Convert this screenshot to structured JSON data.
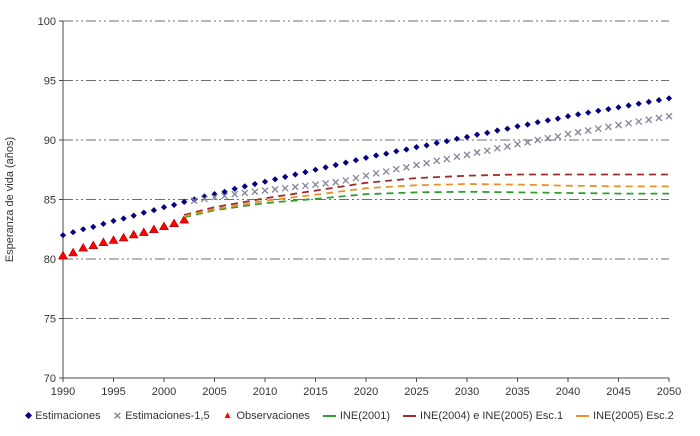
{
  "figure": {
    "background": "#ffffff",
    "grid_color": "#6e6e6e",
    "axis_color": "#4a4a4a",
    "text_color": "#333333"
  },
  "chart_data": {
    "type": "line",
    "title": "",
    "xlabel": "",
    "ylabel": "Esperanza de vida (años)",
    "xlim": [
      1990,
      2050
    ],
    "ylim": [
      70,
      100
    ],
    "x_ticks": [
      1990,
      1995,
      2000,
      2005,
      2010,
      2015,
      2020,
      2025,
      2030,
      2035,
      2040,
      2045,
      2050
    ],
    "y_ticks": [
      70,
      75,
      80,
      85,
      90,
      95,
      100
    ],
    "grid": "horizontal dash-dot",
    "legend_position": "bottom",
    "series": [
      {
        "name": "Estimaciones",
        "marker": "diamond",
        "line": "none",
        "color": "#000080",
        "start_year": 1990,
        "step": 1,
        "values": [
          82.0,
          82.25,
          82.5,
          82.7,
          82.95,
          83.2,
          83.4,
          83.65,
          83.9,
          84.1,
          84.35,
          84.55,
          84.8,
          85.0,
          85.25,
          85.45,
          85.65,
          85.9,
          86.1,
          86.3,
          86.5,
          86.7,
          86.9,
          87.1,
          87.3,
          87.5,
          87.7,
          87.9,
          88.1,
          88.3,
          88.5,
          88.7,
          88.85,
          89.05,
          89.2,
          89.4,
          89.55,
          89.75,
          89.9,
          90.1,
          90.25,
          90.45,
          90.6,
          90.8,
          90.95,
          91.15,
          91.3,
          91.5,
          91.65,
          91.8,
          92.0,
          92.15,
          92.3,
          92.45,
          92.6,
          92.75,
          92.9,
          93.05,
          93.2,
          93.35,
          93.5
        ]
      },
      {
        "name": "Estimaciones-1,5",
        "marker": "x",
        "line": "none",
        "color": "#83839c",
        "start_year": 2003,
        "step": 1,
        "values": [
          84.9,
          85.05,
          85.2,
          85.3,
          85.45,
          85.55,
          85.65,
          85.75,
          85.85,
          85.95,
          86.05,
          86.15,
          86.25,
          86.35,
          86.45,
          86.6,
          86.8,
          87.0,
          87.2,
          87.35,
          87.55,
          87.7,
          87.9,
          88.05,
          88.25,
          88.4,
          88.6,
          88.75,
          88.95,
          89.1,
          89.3,
          89.45,
          89.65,
          89.8,
          90.0,
          90.15,
          90.3,
          90.5,
          90.65,
          90.8,
          90.95,
          91.1,
          91.25,
          91.4,
          91.55,
          91.7,
          91.85,
          92.0
        ]
      },
      {
        "name": "Observaciones",
        "marker": "triangle",
        "line": "none",
        "color": "#ff0000",
        "start_year": 1990,
        "step": 1,
        "values": [
          80.3,
          80.55,
          80.95,
          81.15,
          81.4,
          81.6,
          81.8,
          82.05,
          82.25,
          82.5,
          82.75,
          83.0,
          83.3
        ]
      },
      {
        "name": "INE(2001)",
        "marker": "none",
        "line": "dashed",
        "color": "#2f9e2f",
        "start_year": 2002,
        "step": 1,
        "values": [
          83.5,
          83.7,
          83.9,
          84.1,
          84.22,
          84.34,
          84.46,
          84.58,
          84.7,
          84.77,
          84.84,
          84.91,
          84.98,
          85.05,
          85.13,
          85.21,
          85.29,
          85.37,
          85.45,
          85.48,
          85.51,
          85.54,
          85.57,
          85.6,
          85.61,
          85.62,
          85.63,
          85.64,
          85.65,
          85.64,
          85.63,
          85.62,
          85.61,
          85.6,
          85.59,
          85.58,
          85.57,
          85.56,
          85.55,
          85.54,
          85.53,
          85.52,
          85.51,
          85.5,
          85.5,
          85.5,
          85.5,
          85.5,
          85.5
        ]
      },
      {
        "name": "INE(2004) e INE(2005) Esc.1",
        "marker": "none",
        "line": "dashed",
        "color": "#a02b2b",
        "start_year": 2002,
        "step": 1,
        "values": [
          83.7,
          83.92,
          84.14,
          84.35,
          84.5,
          84.65,
          84.8,
          84.95,
          85.1,
          85.23,
          85.36,
          85.49,
          85.62,
          85.75,
          85.88,
          86.01,
          86.14,
          86.27,
          86.4,
          86.48,
          86.56,
          86.64,
          86.72,
          86.8,
          86.84,
          86.88,
          86.92,
          86.96,
          87.0,
          87.02,
          87.04,
          87.06,
          87.08,
          87.1,
          87.1,
          87.1,
          87.1,
          87.1,
          87.1,
          87.1,
          87.1,
          87.1,
          87.1,
          87.1,
          87.1,
          87.1,
          87.1,
          87.1,
          87.1
        ]
      },
      {
        "name": "INE(2005) Esc.2",
        "marker": "none",
        "line": "dashed",
        "color": "#e8922e",
        "start_year": 2002,
        "step": 1,
        "values": [
          83.6,
          83.8,
          84.0,
          84.2,
          84.34,
          84.48,
          84.62,
          84.76,
          84.9,
          85.0,
          85.1,
          85.2,
          85.3,
          85.4,
          85.51,
          85.62,
          85.73,
          85.84,
          85.95,
          86.0,
          86.05,
          86.1,
          86.15,
          86.2,
          86.22,
          86.24,
          86.26,
          86.28,
          86.3,
          86.29,
          86.28,
          86.27,
          86.26,
          86.25,
          86.24,
          86.22,
          86.2,
          86.18,
          86.16,
          86.15,
          86.14,
          86.13,
          86.12,
          86.11,
          86.1,
          86.1,
          86.1,
          86.1,
          86.1
        ]
      }
    ]
  }
}
